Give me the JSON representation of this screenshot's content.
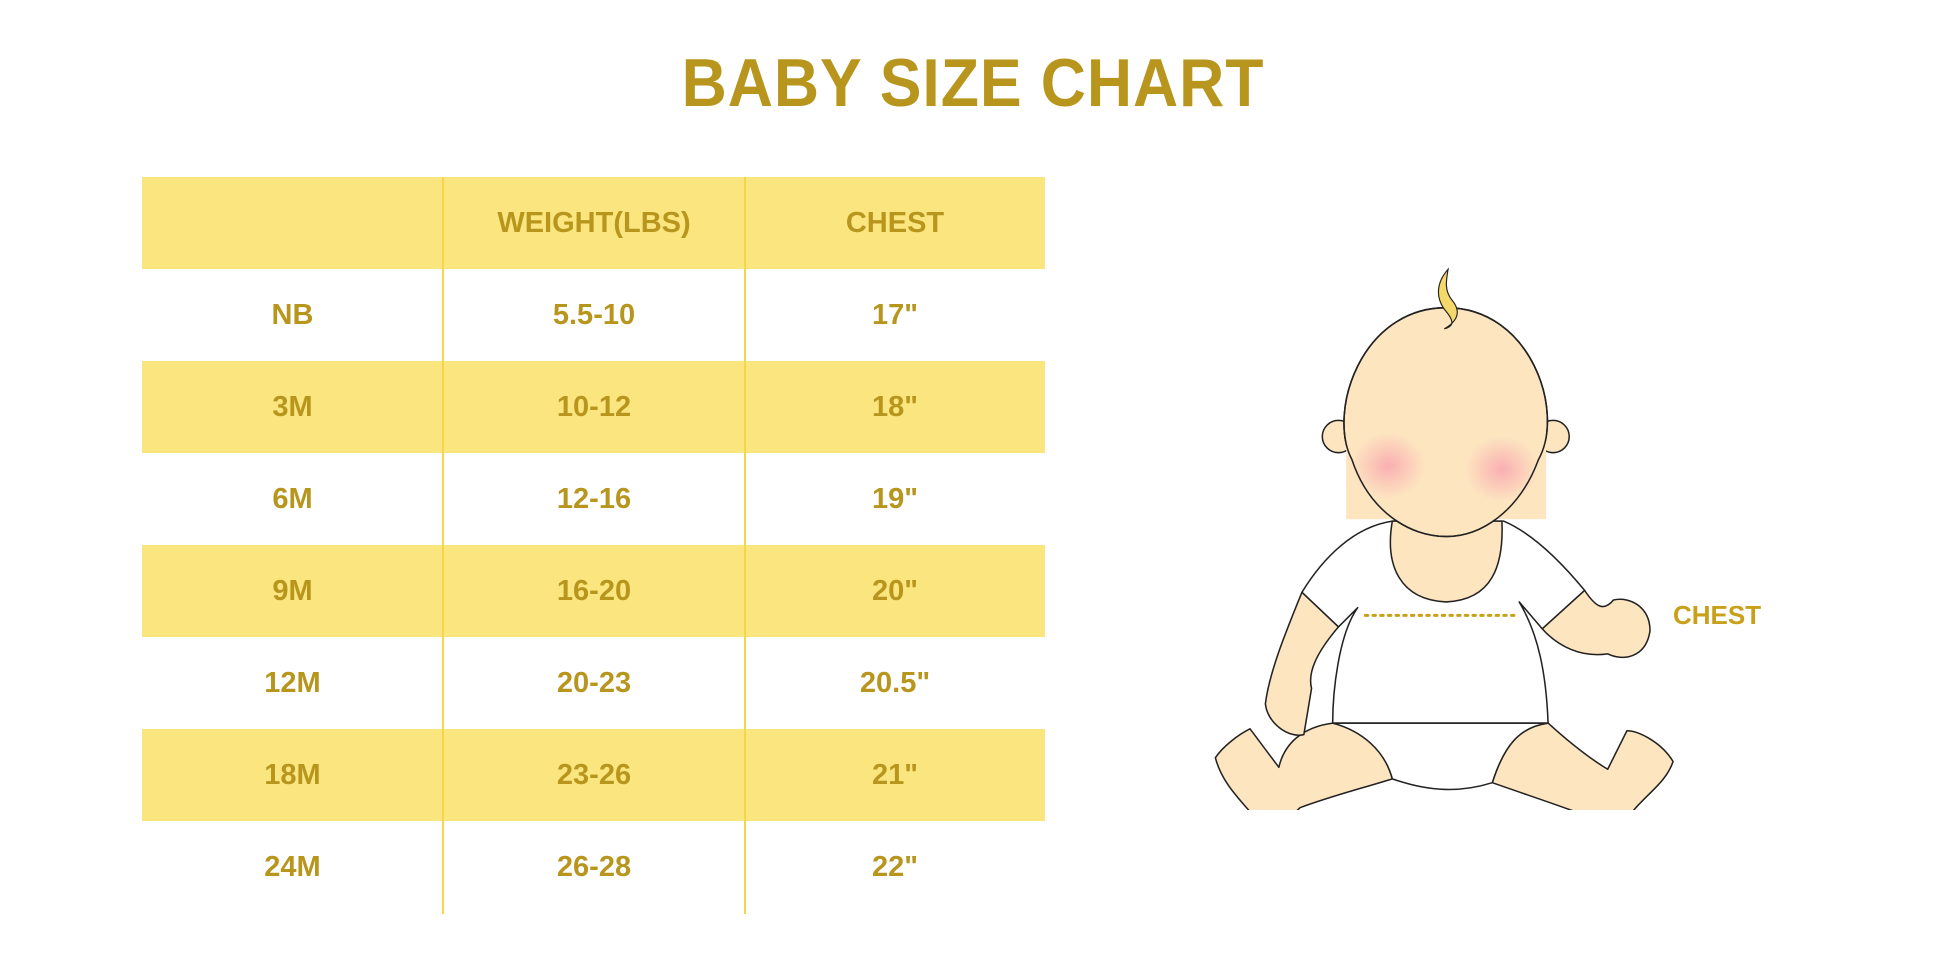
{
  "title": "BABY SIZE CHART",
  "table": {
    "headers": [
      "",
      "WEIGHT(LBS)",
      "CHEST"
    ],
    "rows": [
      [
        "NB",
        "5.5-10",
        "17\""
      ],
      [
        "3M",
        "10-12",
        "18\""
      ],
      [
        "6M",
        "12-16",
        "19\""
      ],
      [
        "9M",
        "16-20",
        "20\""
      ],
      [
        "12M",
        "20-23",
        "20.5\""
      ],
      [
        "18M",
        "23-26",
        "21\""
      ],
      [
        "24M",
        "26-28",
        "22\""
      ]
    ]
  },
  "illustration": {
    "chest_label": "CHEST"
  },
  "colors": {
    "text": "#B8961E",
    "row_fill": "#FAE57E",
    "divider": "#F5D64A",
    "skin": "#FDE5C0"
  }
}
